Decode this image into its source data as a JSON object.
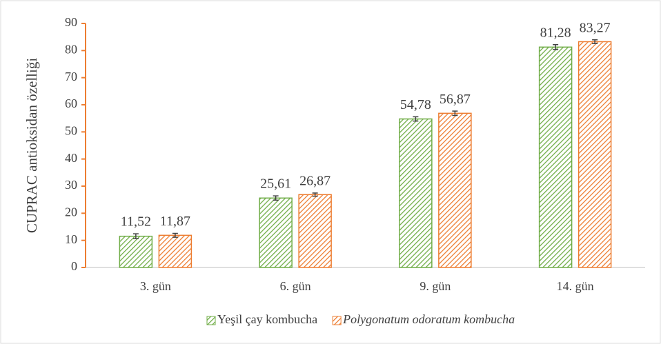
{
  "chart_data": {
    "type": "bar",
    "y_label": "CUPRAC antioksidan özelliği",
    "categories": [
      "3. gün",
      "6. gün",
      "9. gün",
      "14. gün"
    ],
    "series": [
      {
        "name": "Yeşil çay kombucha",
        "color": "#70ad47",
        "values": [
          11.52,
          25.61,
          54.78,
          81.28
        ],
        "value_labels": [
          "11,52",
          "25,61",
          "54,78",
          "81,28"
        ],
        "errors": [
          0.9,
          0.8,
          0.8,
          0.9
        ]
      },
      {
        "name": "Polygonatum odoratum kombucha",
        "color": "#ed7d31",
        "values": [
          11.87,
          26.87,
          56.87,
          83.27
        ],
        "value_labels": [
          "11,87",
          "26,87",
          "56,87",
          "83,27"
        ],
        "errors": [
          0.7,
          0.6,
          0.8,
          0.7
        ]
      }
    ],
    "ylim": [
      0,
      90
    ],
    "yticks": [
      0,
      10,
      20,
      30,
      40,
      50,
      60,
      70,
      80,
      90
    ],
    "grid": false,
    "legend": "bottom",
    "axis_color": "#ed7d31"
  }
}
